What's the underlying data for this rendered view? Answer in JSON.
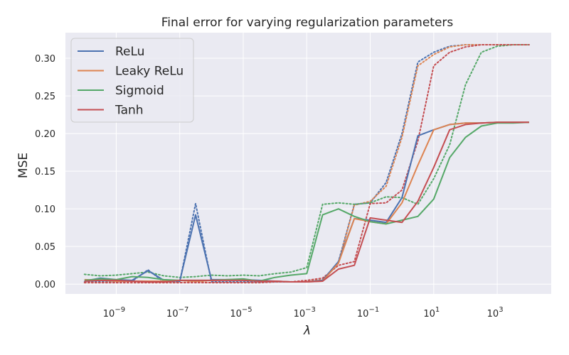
{
  "chart_data": {
    "type": "line",
    "title": "Final error for varying regularization parameters",
    "xlabel": "λ",
    "ylabel": "MSE",
    "xscale": "log",
    "xlim_exp": [
      -10.6,
      4.7
    ],
    "ylim": [
      -0.013,
      0.334
    ],
    "grid": true,
    "legend_position": "top-left",
    "x_ticks": [
      {
        "base": "10",
        "exp": "−9",
        "value_exp": -9
      },
      {
        "base": "10",
        "exp": "−7",
        "value_exp": -7
      },
      {
        "base": "10",
        "exp": "−5",
        "value_exp": -5
      },
      {
        "base": "10",
        "exp": "−3",
        "value_exp": -3
      },
      {
        "base": "10",
        "exp": "−1",
        "value_exp": -1
      },
      {
        "base": "10",
        "exp": "1",
        "value_exp": 1
      },
      {
        "base": "10",
        "exp": "3",
        "value_exp": 3
      }
    ],
    "y_ticks": [
      {
        "label": "0.00",
        "value": 0.0
      },
      {
        "label": "0.05",
        "value": 0.05
      },
      {
        "label": "0.10",
        "value": 0.1
      },
      {
        "label": "0.15",
        "value": 0.15
      },
      {
        "label": "0.20",
        "value": 0.2
      },
      {
        "label": "0.25",
        "value": 0.25
      },
      {
        "label": "0.30",
        "value": 0.3
      }
    ],
    "x_exponents": [
      -10,
      -9.5,
      -9,
      -8.5,
      -8,
      -7.5,
      -7,
      -6.5,
      -6,
      -5.5,
      -5,
      -4.5,
      -4,
      -3.5,
      -3,
      -2.5,
      -2,
      -1.5,
      -1,
      -0.5,
      0,
      0.5,
      1,
      1.5,
      2,
      2.5,
      3,
      3.5,
      4
    ],
    "series": [
      {
        "name": "ReLu",
        "color": "#4c72b0",
        "solid": [
          0.004,
          0.008,
          0.006,
          0.005,
          0.018,
          0.005,
          0.004,
          0.092,
          0.006,
          0.006,
          0.006,
          0.005,
          0.004,
          0.003,
          0.003,
          0.005,
          0.03,
          0.087,
          0.085,
          0.082,
          0.115,
          0.197,
          0.205,
          0.212,
          0.214,
          0.214,
          0.215,
          0.215,
          0.215
        ],
        "dotted": [
          0.003,
          0.003,
          0.003,
          0.004,
          0.019,
          0.003,
          0.003,
          0.107,
          0.003,
          0.003,
          0.003,
          0.003,
          0.003,
          0.003,
          0.003,
          0.005,
          0.03,
          0.106,
          0.108,
          0.135,
          0.2,
          0.295,
          0.308,
          0.316,
          0.318,
          0.318,
          0.318,
          0.318,
          0.318
        ]
      },
      {
        "name": "Leaky ReLu",
        "color": "#dd8452",
        "solid": [
          0.006,
          0.005,
          0.004,
          0.004,
          0.004,
          0.004,
          0.005,
          0.004,
          0.005,
          0.006,
          0.006,
          0.004,
          0.004,
          0.003,
          0.003,
          0.004,
          0.028,
          0.087,
          0.083,
          0.08,
          0.108,
          0.158,
          0.205,
          0.212,
          0.214,
          0.214,
          0.215,
          0.215,
          0.215
        ],
        "dotted": [
          0.002,
          0.002,
          0.002,
          0.002,
          0.002,
          0.002,
          0.002,
          0.003,
          0.002,
          0.002,
          0.002,
          0.002,
          0.003,
          0.003,
          0.004,
          0.006,
          0.028,
          0.105,
          0.11,
          0.13,
          0.195,
          0.29,
          0.305,
          0.315,
          0.318,
          0.318,
          0.318,
          0.318,
          0.318
        ]
      },
      {
        "name": "Sigmoid",
        "color": "#55a868",
        "solid": [
          0.005,
          0.007,
          0.006,
          0.01,
          0.009,
          0.006,
          0.005,
          0.005,
          0.005,
          0.006,
          0.007,
          0.004,
          0.009,
          0.012,
          0.014,
          0.092,
          0.1,
          0.09,
          0.083,
          0.08,
          0.085,
          0.09,
          0.113,
          0.168,
          0.195,
          0.21,
          0.214,
          0.214,
          0.215
        ],
        "dotted": [
          0.013,
          0.011,
          0.012,
          0.014,
          0.016,
          0.011,
          0.009,
          0.01,
          0.012,
          0.011,
          0.012,
          0.011,
          0.014,
          0.016,
          0.022,
          0.106,
          0.108,
          0.106,
          0.108,
          0.116,
          0.115,
          0.106,
          0.14,
          0.185,
          0.265,
          0.308,
          0.316,
          0.318,
          0.318
        ]
      },
      {
        "name": "Tanh",
        "color": "#c44e52",
        "solid": [
          0.004,
          0.005,
          0.005,
          0.004,
          0.003,
          0.003,
          0.005,
          0.005,
          0.005,
          0.005,
          0.005,
          0.004,
          0.004,
          0.003,
          0.003,
          0.004,
          0.02,
          0.025,
          0.088,
          0.085,
          0.082,
          0.11,
          0.155,
          0.205,
          0.212,
          0.214,
          0.215,
          0.215,
          0.215
        ],
        "dotted": [
          0.002,
          0.002,
          0.002,
          0.002,
          0.002,
          0.002,
          0.002,
          0.002,
          0.002,
          0.002,
          0.002,
          0.002,
          0.003,
          0.003,
          0.005,
          0.008,
          0.025,
          0.03,
          0.107,
          0.108,
          0.125,
          0.19,
          0.29,
          0.308,
          0.315,
          0.318,
          0.318,
          0.318,
          0.318
        ]
      }
    ]
  }
}
